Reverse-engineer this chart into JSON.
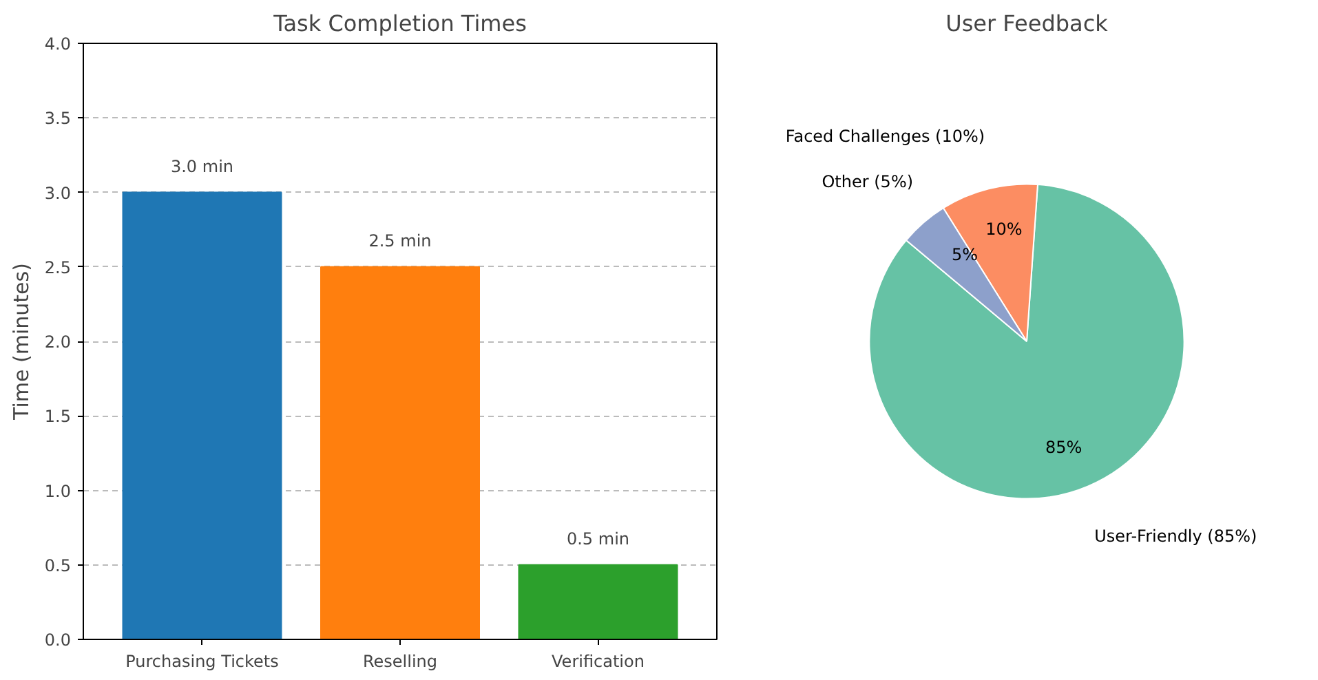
{
  "chart_data": [
    {
      "type": "bar",
      "title": "Task Completion Times",
      "ylabel": "Time (minutes)",
      "categories": [
        "Purchasing Tickets",
        "Reselling",
        "Verification"
      ],
      "values": [
        3.0,
        2.5,
        0.5
      ],
      "colors": [
        "#1f77b4",
        "#ff7f0e",
        "#2ca02c"
      ],
      "value_labels": [
        "3.0 min",
        "2.5 min",
        "0.5 min"
      ],
      "ylim": [
        0,
        4
      ],
      "yticks": [
        {
          "value": 0,
          "label": "0.0"
        },
        {
          "value": 0.5,
          "label": "0.5"
        },
        {
          "value": 1,
          "label": "1.0"
        },
        {
          "value": 1.5,
          "label": "1.5"
        },
        {
          "value": 2,
          "label": "2.0"
        },
        {
          "value": 2.5,
          "label": "2.5"
        },
        {
          "value": 3,
          "label": "3.0"
        },
        {
          "value": 3.5,
          "label": "3.5"
        },
        {
          "value": 4,
          "label": "4.0"
        }
      ],
      "grid": "y"
    },
    {
      "type": "pie",
      "title": "User Feedback",
      "categories": [
        "User-Friendly (85%)",
        "Faced Challenges (10%)",
        "Other (5%)"
      ],
      "values": [
        85,
        10,
        5
      ],
      "colors": [
        "#66c2a5",
        "#fc8d62",
        "#8da0cb"
      ],
      "value_labels": [
        "85%",
        "10%",
        "5%"
      ]
    }
  ]
}
